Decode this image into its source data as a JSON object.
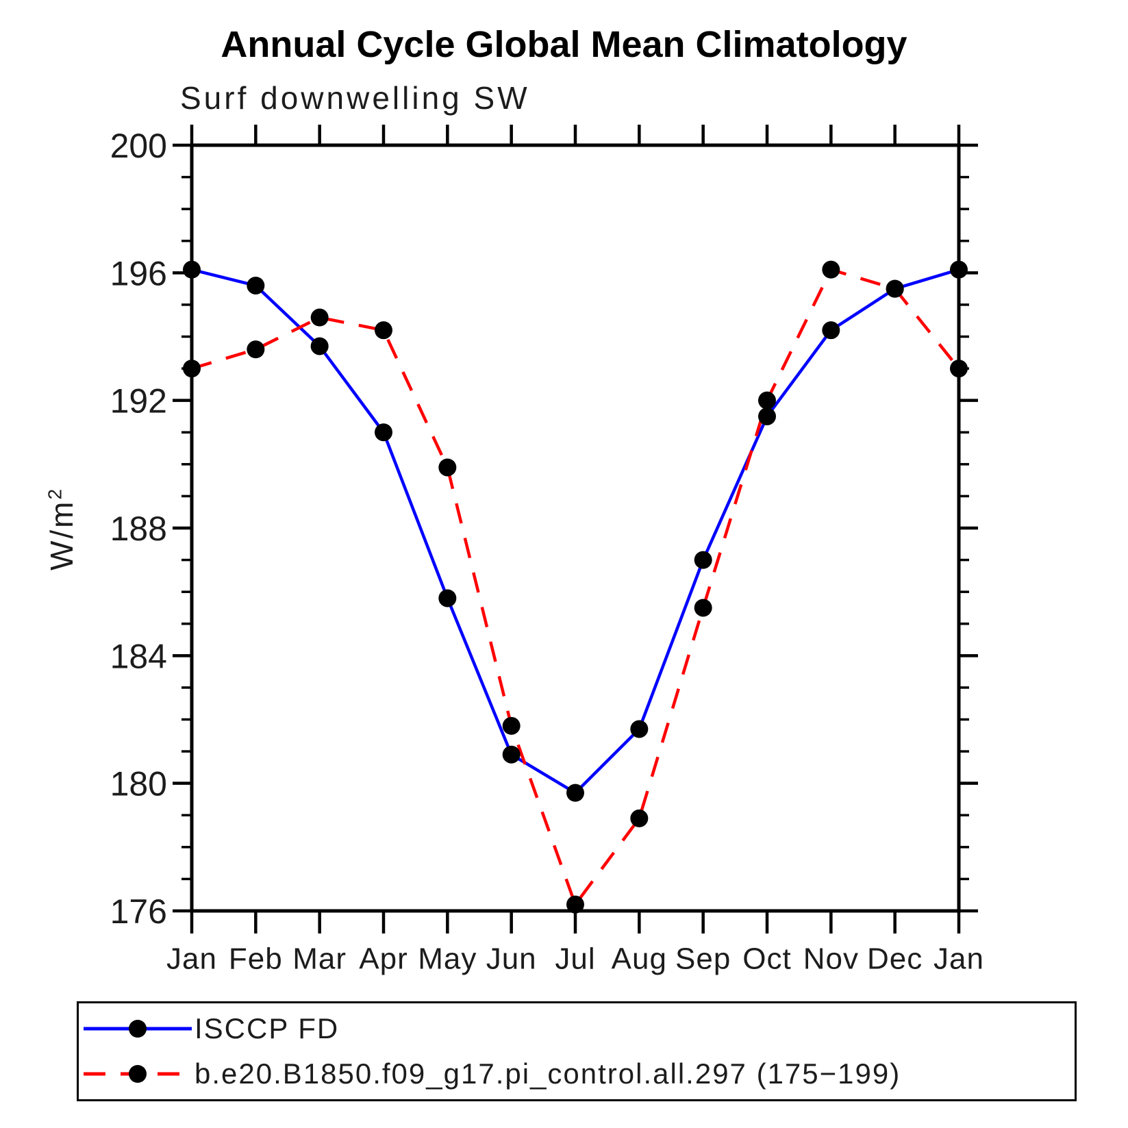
{
  "page": {
    "background": "#ffffff"
  },
  "chart_data": {
    "type": "line",
    "title": "Annual Cycle Global Mean Climatology",
    "subtitle": "Surf downwelling SW",
    "ylabel_base": "W/m",
    "ylabel_exponent": "2",
    "xlabel": "",
    "x_tick_labels": [
      "Jan",
      "Feb",
      "Mar",
      "Apr",
      "May",
      "Jun",
      "Jul",
      "Aug",
      "Sep",
      "Oct",
      "Nov",
      "Dec",
      "Jan"
    ],
    "y_ticks": [
      176,
      180,
      184,
      188,
      192,
      196,
      200
    ],
    "y_minor_step": 1,
    "ylim": [
      176,
      200
    ],
    "grid": false,
    "legend_position": "bottom",
    "axis_color": "#000000",
    "marker_color": "#000000",
    "series": [
      {
        "name": "ISCCP FD",
        "color": "#0000ff",
        "style": "solid",
        "marker": "circle",
        "values": [
          196.1,
          195.6,
          193.7,
          191.0,
          185.8,
          180.9,
          179.7,
          181.7,
          187.0,
          191.5,
          194.2,
          195.5,
          196.1
        ]
      },
      {
        "name": "b.e20.B1850.f09_g17.pi_control.all.297 (175−199)",
        "color": "#ff0000",
        "style": "dashed",
        "marker": "circle",
        "values": [
          193.0,
          193.6,
          194.6,
          194.2,
          189.9,
          181.8,
          176.2,
          178.9,
          185.5,
          192.0,
          196.1,
          195.5,
          193.0
        ]
      }
    ]
  }
}
